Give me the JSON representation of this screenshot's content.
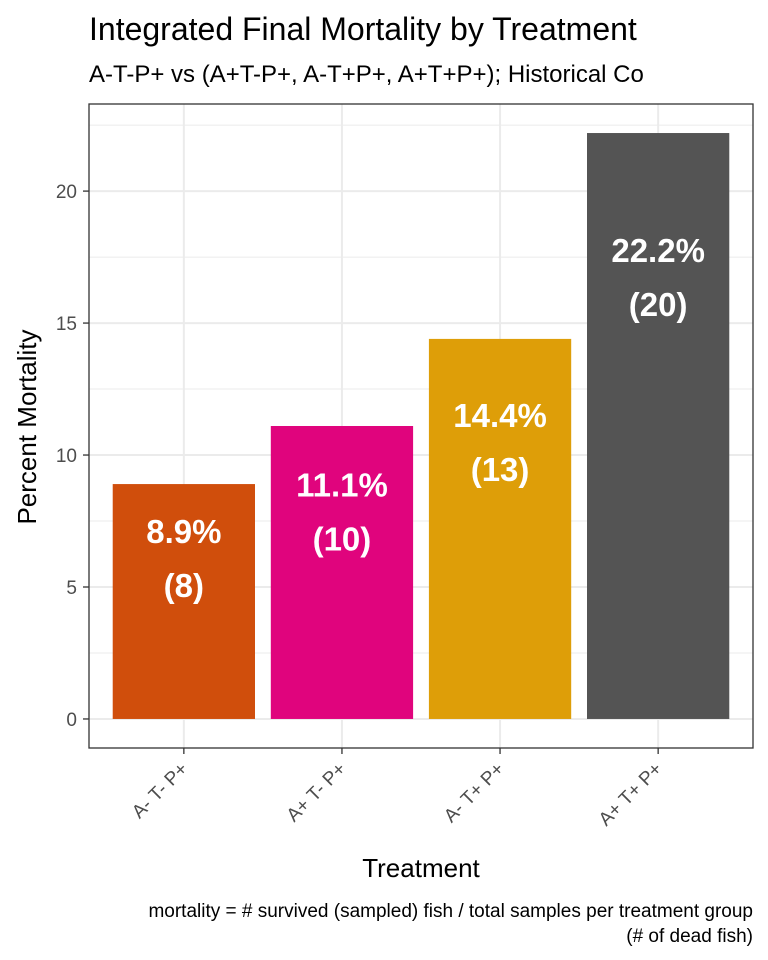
{
  "chart_data": {
    "type": "bar",
    "title": "Integrated Final Mortality by Treatment",
    "subtitle": "A-T-P+ vs (A+T-P+, A-T+P+, A+T+P+); Historical Co",
    "xlabel": "Treatment",
    "ylabel": "Percent Mortality",
    "caption_line1": "mortality = # survived (sampled) fish / total samples per treatment group",
    "caption_line2": "(# of dead fish)",
    "categories": [
      "A- T- P+",
      "A+ T- P+",
      "A- T+ P+",
      "A+ T+ P+"
    ],
    "values": [
      8.9,
      11.1,
      14.4,
      22.2
    ],
    "percent_labels": [
      "8.9%",
      "11.1%",
      "14.4%",
      "22.2%"
    ],
    "count_labels": [
      "(8)",
      "(10)",
      "(13)",
      "(20)"
    ],
    "colors": [
      "#d04e0c",
      "#e0047d",
      "#de9e08",
      "#545454"
    ],
    "ylim": [
      -1.1,
      23.3
    ],
    "yticks": [
      0,
      5,
      10,
      15,
      20
    ],
    "grid": true,
    "theme": "bw"
  }
}
